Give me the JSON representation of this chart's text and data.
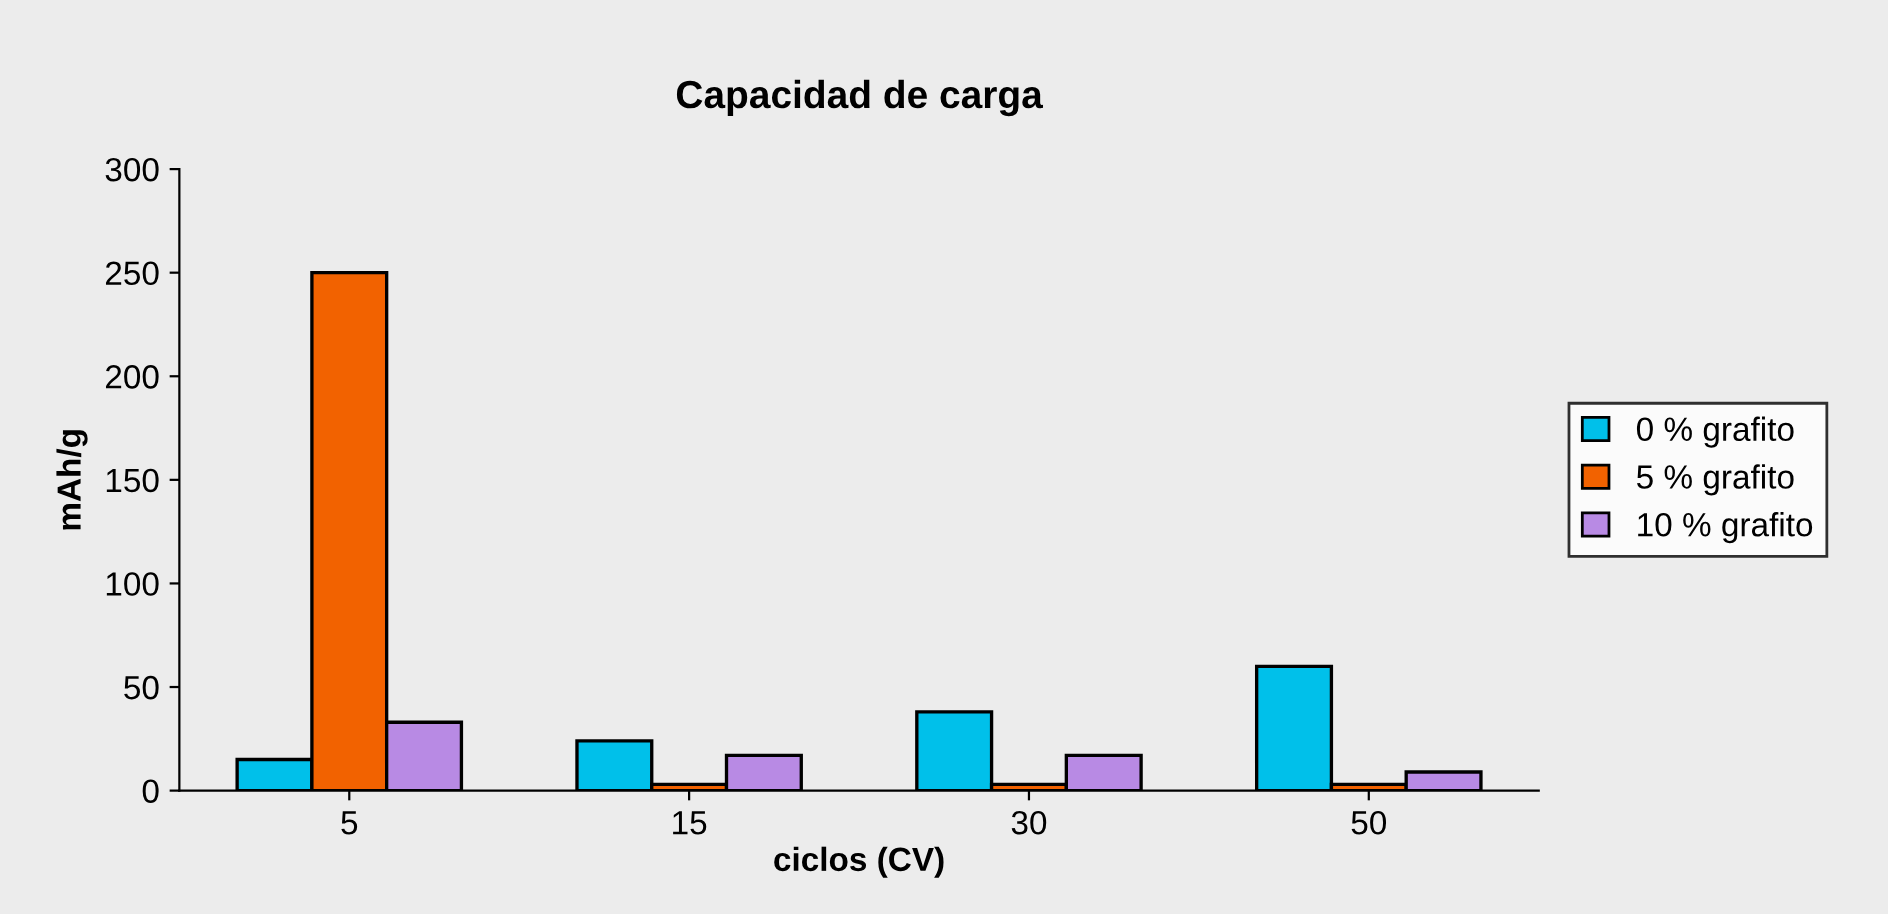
{
  "chart_data": {
    "type": "bar",
    "title": "Capacidad de carga",
    "xlabel": "ciclos (CV)",
    "ylabel": "mAh/g",
    "categories": [
      "5",
      "15",
      "30",
      "50"
    ],
    "series": [
      {
        "name": "0 % grafito",
        "color": "#00c0ea",
        "values": [
          15,
          24,
          38,
          60
        ]
      },
      {
        "name": "5 % grafito",
        "color": "#f26200",
        "values": [
          250,
          3,
          3,
          3
        ]
      },
      {
        "name": "10 % grafito",
        "color": "#b88ae4",
        "values": [
          33,
          17,
          17,
          9
        ]
      }
    ],
    "ylim": [
      0,
      300
    ],
    "yticks": [
      0,
      50,
      100,
      150,
      200,
      250,
      300
    ],
    "grid": false,
    "legend": "right"
  }
}
